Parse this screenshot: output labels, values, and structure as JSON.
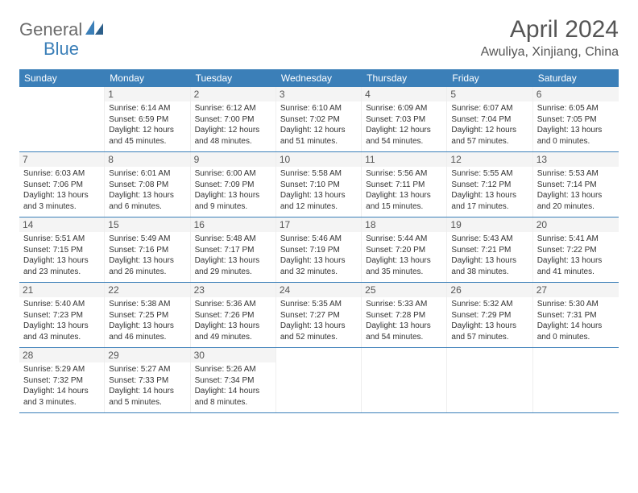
{
  "logo": {
    "part1": "General",
    "part2": "Blue"
  },
  "title": "April 2024",
  "location": "Awuliya, Xinjiang, China",
  "colors": {
    "header_bg": "#3b7fb8",
    "header_text": "#ffffff",
    "logo_gray": "#6b6b6b",
    "logo_blue": "#3b7fb8",
    "day_label_bg": "#f4f4f4",
    "border": "#3b7fb8"
  },
  "dayNames": [
    "Sunday",
    "Monday",
    "Tuesday",
    "Wednesday",
    "Thursday",
    "Friday",
    "Saturday"
  ],
  "weeks": [
    [
      null,
      {
        "n": "1",
        "sr": "6:14 AM",
        "ss": "6:59 PM",
        "dl": "12 hours and 45 minutes."
      },
      {
        "n": "2",
        "sr": "6:12 AM",
        "ss": "7:00 PM",
        "dl": "12 hours and 48 minutes."
      },
      {
        "n": "3",
        "sr": "6:10 AM",
        "ss": "7:02 PM",
        "dl": "12 hours and 51 minutes."
      },
      {
        "n": "4",
        "sr": "6:09 AM",
        "ss": "7:03 PM",
        "dl": "12 hours and 54 minutes."
      },
      {
        "n": "5",
        "sr": "6:07 AM",
        "ss": "7:04 PM",
        "dl": "12 hours and 57 minutes."
      },
      {
        "n": "6",
        "sr": "6:05 AM",
        "ss": "7:05 PM",
        "dl": "13 hours and 0 minutes."
      }
    ],
    [
      {
        "n": "7",
        "sr": "6:03 AM",
        "ss": "7:06 PM",
        "dl": "13 hours and 3 minutes."
      },
      {
        "n": "8",
        "sr": "6:01 AM",
        "ss": "7:08 PM",
        "dl": "13 hours and 6 minutes."
      },
      {
        "n": "9",
        "sr": "6:00 AM",
        "ss": "7:09 PM",
        "dl": "13 hours and 9 minutes."
      },
      {
        "n": "10",
        "sr": "5:58 AM",
        "ss": "7:10 PM",
        "dl": "13 hours and 12 minutes."
      },
      {
        "n": "11",
        "sr": "5:56 AM",
        "ss": "7:11 PM",
        "dl": "13 hours and 15 minutes."
      },
      {
        "n": "12",
        "sr": "5:55 AM",
        "ss": "7:12 PM",
        "dl": "13 hours and 17 minutes."
      },
      {
        "n": "13",
        "sr": "5:53 AM",
        "ss": "7:14 PM",
        "dl": "13 hours and 20 minutes."
      }
    ],
    [
      {
        "n": "14",
        "sr": "5:51 AM",
        "ss": "7:15 PM",
        "dl": "13 hours and 23 minutes."
      },
      {
        "n": "15",
        "sr": "5:49 AM",
        "ss": "7:16 PM",
        "dl": "13 hours and 26 minutes."
      },
      {
        "n": "16",
        "sr": "5:48 AM",
        "ss": "7:17 PM",
        "dl": "13 hours and 29 minutes."
      },
      {
        "n": "17",
        "sr": "5:46 AM",
        "ss": "7:19 PM",
        "dl": "13 hours and 32 minutes."
      },
      {
        "n": "18",
        "sr": "5:44 AM",
        "ss": "7:20 PM",
        "dl": "13 hours and 35 minutes."
      },
      {
        "n": "19",
        "sr": "5:43 AM",
        "ss": "7:21 PM",
        "dl": "13 hours and 38 minutes."
      },
      {
        "n": "20",
        "sr": "5:41 AM",
        "ss": "7:22 PM",
        "dl": "13 hours and 41 minutes."
      }
    ],
    [
      {
        "n": "21",
        "sr": "5:40 AM",
        "ss": "7:23 PM",
        "dl": "13 hours and 43 minutes."
      },
      {
        "n": "22",
        "sr": "5:38 AM",
        "ss": "7:25 PM",
        "dl": "13 hours and 46 minutes."
      },
      {
        "n": "23",
        "sr": "5:36 AM",
        "ss": "7:26 PM",
        "dl": "13 hours and 49 minutes."
      },
      {
        "n": "24",
        "sr": "5:35 AM",
        "ss": "7:27 PM",
        "dl": "13 hours and 52 minutes."
      },
      {
        "n": "25",
        "sr": "5:33 AM",
        "ss": "7:28 PM",
        "dl": "13 hours and 54 minutes."
      },
      {
        "n": "26",
        "sr": "5:32 AM",
        "ss": "7:29 PM",
        "dl": "13 hours and 57 minutes."
      },
      {
        "n": "27",
        "sr": "5:30 AM",
        "ss": "7:31 PM",
        "dl": "14 hours and 0 minutes."
      }
    ],
    [
      {
        "n": "28",
        "sr": "5:29 AM",
        "ss": "7:32 PM",
        "dl": "14 hours and 3 minutes."
      },
      {
        "n": "29",
        "sr": "5:27 AM",
        "ss": "7:33 PM",
        "dl": "14 hours and 5 minutes."
      },
      {
        "n": "30",
        "sr": "5:26 AM",
        "ss": "7:34 PM",
        "dl": "14 hours and 8 minutes."
      },
      null,
      null,
      null,
      null
    ]
  ],
  "labels": {
    "sunrise": "Sunrise:",
    "sunset": "Sunset:",
    "daylight": "Daylight:"
  }
}
